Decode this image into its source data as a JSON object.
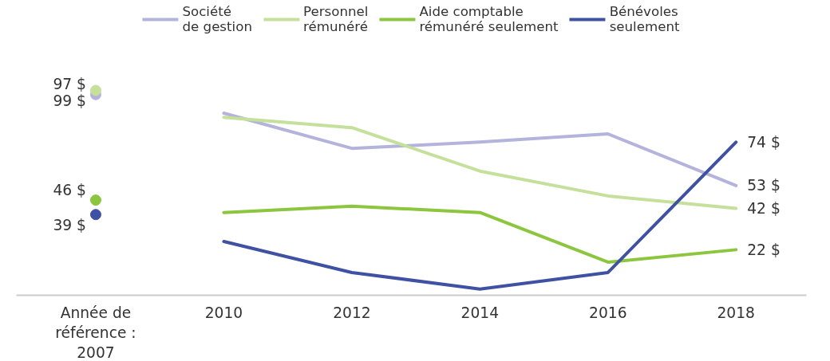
{
  "chart_data": {
    "type": "line",
    "categories": [
      "Année de référence : 2007",
      "2010",
      "2012",
      "2014",
      "2016",
      "2018"
    ],
    "legend": "top",
    "grid": false,
    "line_style": "solid",
    "series": [
      {
        "name": "Société\nde gestion",
        "color": "#b3b3dc",
        "values": [
          null,
          88,
          71,
          74,
          78,
          53
        ],
        "value_labels": [
          null,
          null,
          null,
          null,
          null,
          "53 $"
        ]
      },
      {
        "name": "Personnel\nrémunéré",
        "color": "#c5e09a",
        "values": [
          null,
          86,
          81,
          60,
          48,
          42
        ],
        "value_labels": [
          null,
          null,
          null,
          null,
          null,
          "42 $"
        ]
      },
      {
        "name": "Aide comptable\nrémunéré seulement",
        "color": "#8cc63f",
        "values": [
          null,
          40,
          43,
          40,
          16,
          22
        ],
        "value_labels": [
          null,
          null,
          null,
          null,
          null,
          "22 $"
        ]
      },
      {
        "name": "Bénévoles\nseulement",
        "color": "#3f51a3",
        "values": [
          null,
          26,
          11,
          3,
          11,
          74
        ],
        "value_labels": [
          null,
          null,
          null,
          null,
          null,
          "74 $"
        ]
      },
      {
        "type": "scatter",
        "marker": "circle",
        "color": "#b3b3dc",
        "x": [
          "Année de référence : 2007"
        ],
        "values": [
          97
        ],
        "value_labels": [
          "97 $"
        ]
      },
      {
        "type": "scatter",
        "marker": "circle",
        "color": "#c5e09a",
        "x": [
          "Année de référence : 2007"
        ],
        "values": [
          99
        ],
        "value_labels": [
          "99 $"
        ]
      },
      {
        "type": "scatter",
        "marker": "circle",
        "color": "#8cc63f",
        "x": [
          "Année de référence : 2007"
        ],
        "values": [
          46
        ],
        "value_labels": [
          "46 $"
        ]
      },
      {
        "type": "scatter",
        "marker": "circle",
        "color": "#3f51a3",
        "x": [
          "Année de référence : 2007"
        ],
        "values": [
          39
        ],
        "value_labels": [
          "39 $"
        ]
      }
    ]
  }
}
